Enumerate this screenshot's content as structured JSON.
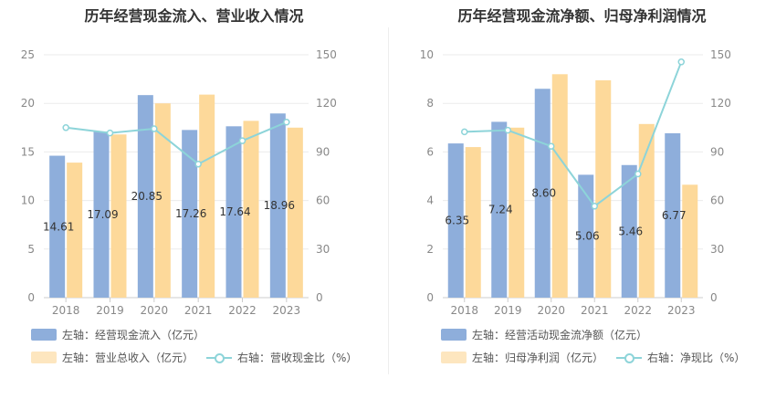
{
  "chart_data": [
    {
      "type": "bar+line",
      "title": "历年经营现金流入、营业收入情况",
      "categories": [
        "2018",
        "2019",
        "2020",
        "2021",
        "2022",
        "2023"
      ],
      "left_axis": {
        "ylim": [
          0,
          25
        ],
        "ticks": [
          "0",
          "5",
          "10",
          "15",
          "20",
          "25"
        ]
      },
      "right_axis": {
        "ylim": [
          0,
          150
        ],
        "ticks": [
          "0",
          "30",
          "60",
          "90",
          "120",
          "150"
        ]
      },
      "series": [
        {
          "name": "左轴：经营现金流入（亿元）",
          "kind": "bar",
          "axis": "left",
          "color": "#8eaedb",
          "values": [
            14.61,
            17.09,
            20.85,
            17.26,
            17.64,
            18.96
          ],
          "labels": [
            "14.61",
            "17.09",
            "20.85",
            "17.26",
            "17.64",
            "18.96"
          ]
        },
        {
          "name": "左轴：营业总收入（亿元）",
          "kind": "bar",
          "axis": "left",
          "color": "#fdd99a",
          "values": [
            13.9,
            16.8,
            20.0,
            20.9,
            18.2,
            17.5
          ]
        },
        {
          "name": "右轴：营收现金比（%）",
          "kind": "line",
          "axis": "right",
          "color": "#8dd4d9",
          "values": [
            105.0,
            101.7,
            104.3,
            82.5,
            96.9,
            108.4
          ]
        }
      ],
      "legend": "bottom"
    },
    {
      "type": "bar+line",
      "title": "历年经营现金流净额、归母净利润情况",
      "categories": [
        "2018",
        "2019",
        "2020",
        "2021",
        "2022",
        "2023"
      ],
      "left_axis": {
        "ylim": [
          0,
          10
        ],
        "ticks": [
          "0",
          "2",
          "4",
          "6",
          "8",
          "10"
        ]
      },
      "right_axis": {
        "ylim": [
          0,
          150
        ],
        "ticks": [
          "0",
          "30",
          "60",
          "90",
          "120",
          "150"
        ]
      },
      "series": [
        {
          "name": "左轴：经营活动现金流净额（亿元）",
          "kind": "bar",
          "axis": "left",
          "color": "#8eaedb",
          "values": [
            6.35,
            7.24,
            8.6,
            5.06,
            5.46,
            6.77
          ],
          "labels": [
            "6.35",
            "7.24",
            "8.60",
            "5.06",
            "5.46",
            "6.77"
          ]
        },
        {
          "name": "左轴：归母净利润（亿元）",
          "kind": "bar",
          "axis": "left",
          "color": "#fdd99a",
          "values": [
            6.2,
            7.0,
            9.2,
            8.95,
            7.15,
            4.65
          ]
        },
        {
          "name": "右轴：净现比（%）",
          "kind": "line",
          "axis": "right",
          "color": "#8dd4d9",
          "values": [
            102.4,
            103.4,
            93.5,
            56.5,
            76.4,
            145.6
          ]
        }
      ],
      "legend": "bottom"
    }
  ]
}
